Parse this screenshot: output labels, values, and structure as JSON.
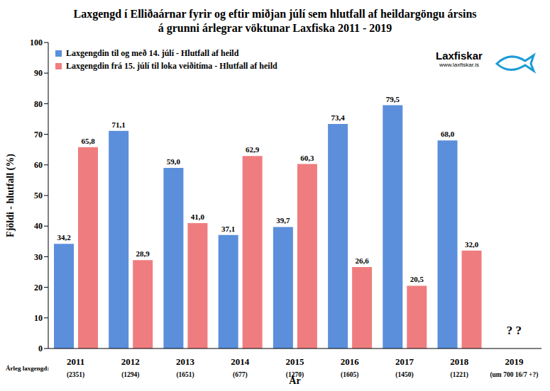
{
  "chart_data": {
    "type": "bar",
    "title": "Laxgengd í Elliðaárnar fyrir og eftir miðjan júlí sem hlutfall af heildargöngu ársins\ná grunni árlegrar vöktunar Laxfiska 2011 - 2019",
    "xlabel": "Ár",
    "ylabel": "Fjöldi - hlutfall (%)",
    "categories": [
      "2011",
      "2012",
      "2013",
      "2014",
      "2015",
      "2016",
      "2017",
      "2018",
      "2019"
    ],
    "category_sublabels": [
      "(2351)",
      "(1294)",
      "(1651)",
      "(677)",
      "(1270)",
      "(1605)",
      "(1450)",
      "(1221)",
      "(um 700 16/7 +?)"
    ],
    "sublabel_title": "Árleg laxgengd:",
    "series": [
      {
        "name": "Laxgengdin til og með 14. júlí - Hlutfall af heild",
        "color": "#5b8fdc",
        "values": [
          34.2,
          71.1,
          59.0,
          37.1,
          39.7,
          73.4,
          79.5,
          68.0,
          null
        ],
        "value_labels": [
          "34,2",
          "71,1",
          "59,0",
          "37,1",
          "39,7",
          "73,4",
          "79,5",
          "68,0",
          null
        ]
      },
      {
        "name": "Laxgengdin frá 15. júlí til loka veiðitíma - Hlutfall af heild",
        "color": "#ef7d7f",
        "values": [
          65.8,
          28.9,
          41.0,
          62.9,
          60.3,
          26.6,
          20.5,
          32.0,
          null
        ],
        "value_labels": [
          "65,8",
          "28,9",
          "41,0",
          "62,9",
          "60,3",
          "26,6",
          "20,5",
          "32,0",
          null
        ]
      }
    ],
    "ylim": [
      0,
      100
    ],
    "yticks": [
      0,
      10,
      20,
      30,
      40,
      50,
      60,
      70,
      80,
      90,
      100
    ],
    "grid": false,
    "legend": "upper left",
    "data_labels": true,
    "annotations": [
      {
        "text": "? ?",
        "x": "2019",
        "y": 6
      }
    ],
    "logo": {
      "text": "Laxfiskar",
      "url": "www.laxfiskar.is"
    }
  }
}
